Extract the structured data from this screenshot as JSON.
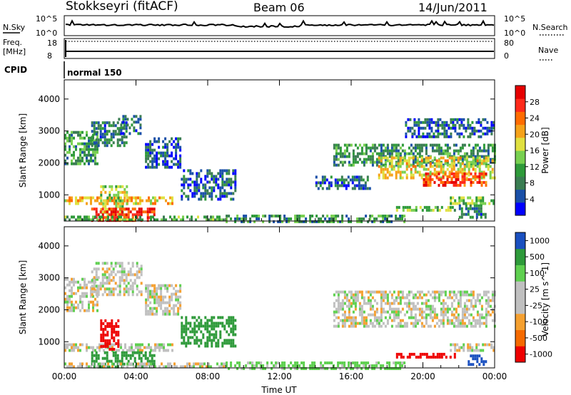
{
  "header": {
    "station": "Stokkseyri (fitACF)",
    "beam": "Beam 06",
    "date": "14/Jun/2011"
  },
  "strips": {
    "nsky_label": "N.Sky",
    "nsearch_label": "N.Search",
    "nsky_ticks": [
      "10^5",
      "10^0"
    ],
    "nsearch_ticks": [
      "10^5",
      "10^0"
    ],
    "freq_label_1": "Freq.",
    "freq_label_2": "[MHz]",
    "freq_ticks": [
      "18",
      "8"
    ],
    "nave_label": "Nave",
    "nave_ticks": [
      "80",
      "0"
    ],
    "cpid_label": "CPID",
    "cpid_value": "normal 150"
  },
  "time_axis": {
    "label": "Time UT",
    "ticks": [
      "00:00",
      "04:00",
      "08:00",
      "12:00",
      "16:00",
      "20:00",
      "00:00"
    ]
  },
  "colors": {
    "power_scale": [
      "#0000ff",
      "#1a50a8",
      "#3a7d52",
      "#2e9a3a",
      "#78d050",
      "#e0e040",
      "#f5a21a",
      "#ff6c00",
      "#ff2a1a",
      "#e60000"
    ],
    "velocity_scale": [
      "#ee0000",
      "#f56a00",
      "#f5a030",
      "#c0c0c0",
      "#c0c0c0",
      "#5fd050",
      "#2e9a3a",
      "#1a50c0"
    ],
    "background": "#ffffff"
  },
  "chart_data": [
    {
      "type": "heatmap",
      "name": "power-panel",
      "ylabel": "Slant Range [km]",
      "xlabel": "",
      "ylim": [
        180,
        4600
      ],
      "xlim": [
        0,
        24
      ],
      "yticks": [
        "1000",
        "2000",
        "3000",
        "4000"
      ],
      "colorbar_label": "Power [dB]",
      "colorbar_ticks": [
        "4",
        "8",
        "12",
        "16",
        "20",
        "24",
        "28"
      ],
      "colorbar_range": [
        0,
        32
      ],
      "regions": [
        {
          "t": [
            0.0,
            1.8
          ],
          "r": [
            2000,
            3000
          ],
          "v": 10
        },
        {
          "t": [
            1.5,
            3.5
          ],
          "r": [
            2500,
            3300
          ],
          "v": 8
        },
        {
          "t": [
            3.0,
            4.3
          ],
          "r": [
            2900,
            3500
          ],
          "v": 7
        },
        {
          "t": [
            4.5,
            6.5
          ],
          "r": [
            1900,
            2800
          ],
          "v": 5
        },
        {
          "t": [
            6.5,
            9.5
          ],
          "r": [
            900,
            1800
          ],
          "v": 6
        },
        {
          "t": [
            0.0,
            6.0
          ],
          "r": [
            750,
            950
          ],
          "v": 20
        },
        {
          "t": [
            2.0,
            3.5
          ],
          "r": [
            400,
            1300
          ],
          "v": 16
        },
        {
          "t": [
            1.5,
            5.0
          ],
          "r": [
            200,
            600
          ],
          "v": 28
        },
        {
          "t": [
            0.0,
            9.0
          ],
          "r": [
            180,
            350
          ],
          "v": 12
        },
        {
          "t": [
            9.0,
            19.0
          ],
          "r": [
            180,
            380
          ],
          "v": 10
        },
        {
          "t": [
            15.0,
            24.0
          ],
          "r": [
            1900,
            2600
          ],
          "v": 10
        },
        {
          "t": [
            17.5,
            24.0
          ],
          "r": [
            1500,
            2200
          ],
          "v": 18
        },
        {
          "t": [
            20.0,
            23.5
          ],
          "r": [
            1300,
            1700
          ],
          "v": 26
        },
        {
          "t": [
            14.0,
            17.0
          ],
          "r": [
            1200,
            1600
          ],
          "v": 6
        },
        {
          "t": [
            18.5,
            21.8
          ],
          "r": [
            500,
            650
          ],
          "v": 14
        },
        {
          "t": [
            21.5,
            24.0
          ],
          "r": [
            700,
            950
          ],
          "v": 14
        },
        {
          "t": [
            19.0,
            24.0
          ],
          "r": [
            2800,
            3400
          ],
          "v": 6
        },
        {
          "t": [
            22.0,
            23.5
          ],
          "r": [
            300,
            700
          ],
          "v": 8
        }
      ]
    },
    {
      "type": "heatmap",
      "name": "velocity-panel",
      "ylabel": "Slant Range [km]",
      "xlabel": "Time UT",
      "ylim": [
        180,
        4600
      ],
      "xlim": [
        0,
        24
      ],
      "yticks": [
        "1000",
        "2000",
        "3000",
        "4000"
      ],
      "colorbar_label": "Velocity [m s^-1]",
      "colorbar_ticks": [
        "1000",
        "500",
        "100",
        "25",
        "-25",
        "-100",
        "-500",
        "-1000"
      ],
      "regions": [
        {
          "t": [
            0.0,
            1.8
          ],
          "r": [
            2000,
            3000
          ],
          "v": 0
        },
        {
          "t": [
            1.5,
            4.3
          ],
          "r": [
            2500,
            3500
          ],
          "v": 0
        },
        {
          "t": [
            4.5,
            6.5
          ],
          "r": [
            1900,
            2800
          ],
          "v": 0
        },
        {
          "t": [
            6.5,
            9.5
          ],
          "r": [
            900,
            1800
          ],
          "v": 300
        },
        {
          "t": [
            0.0,
            6.0
          ],
          "r": [
            750,
            950
          ],
          "v": 0
        },
        {
          "t": [
            2.0,
            3.0
          ],
          "r": [
            800,
            1700
          ],
          "v": -600
        },
        {
          "t": [
            1.5,
            5.0
          ],
          "r": [
            200,
            700
          ],
          "v": 200
        },
        {
          "t": [
            0.0,
            9.0
          ],
          "r": [
            180,
            350
          ],
          "v": 0
        },
        {
          "t": [
            9.0,
            19.0
          ],
          "r": [
            180,
            380
          ],
          "v": 50
        },
        {
          "t": [
            15.0,
            24.0
          ],
          "r": [
            1500,
            2600
          ],
          "v": 0
        },
        {
          "t": [
            18.5,
            21.8
          ],
          "r": [
            500,
            650
          ],
          "v": -600
        },
        {
          "t": [
            21.5,
            24.0
          ],
          "r": [
            700,
            950
          ],
          "v": 0
        },
        {
          "t": [
            22.5,
            23.5
          ],
          "r": [
            300,
            600
          ],
          "v": 600
        }
      ]
    }
  ]
}
